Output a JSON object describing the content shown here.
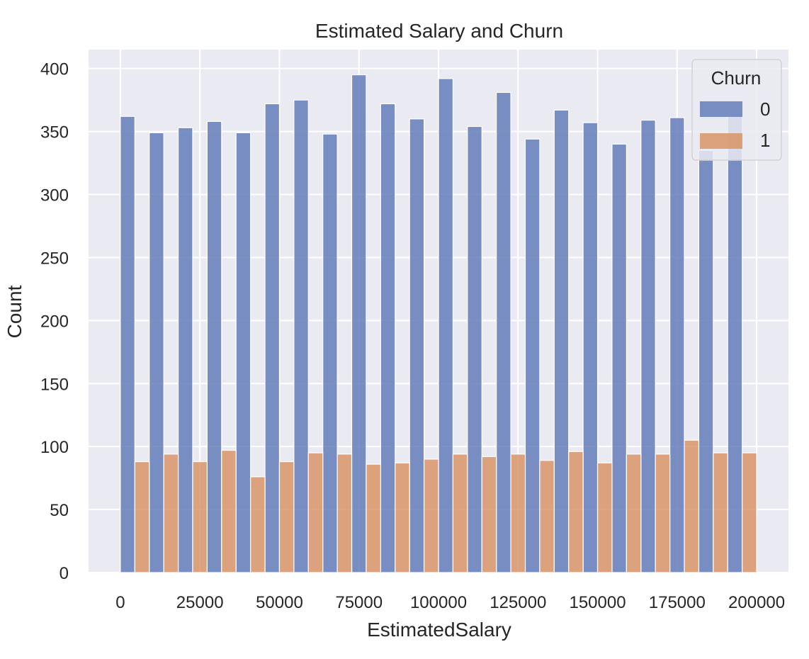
{
  "chart_data": {
    "type": "bar",
    "title": "Estimated Salary and Churn",
    "xlabel": "EstimatedSalary",
    "ylabel": "Count",
    "xlim": [
      -10000,
      210000
    ],
    "ylim": [
      0,
      415
    ],
    "x_ticks": [
      0,
      25000,
      50000,
      75000,
      100000,
      125000,
      150000,
      175000,
      200000
    ],
    "x_tick_labels": [
      "0",
      "25000",
      "50000",
      "75000",
      "100000",
      "125000",
      "150000",
      "175000",
      "200000"
    ],
    "y_ticks": [
      0,
      50,
      100,
      150,
      200,
      250,
      300,
      350,
      400
    ],
    "y_tick_labels": [
      "0",
      "50",
      "100",
      "150",
      "200",
      "250",
      "300",
      "350",
      "400"
    ],
    "bin_edges": [
      0,
      9090.9,
      18181.8,
      27272.7,
      36363.6,
      45454.5,
      54545.5,
      63636.4,
      72727.3,
      81818.2,
      90909.1,
      100000,
      109090.9,
      118181.8,
      127272.7,
      136363.6,
      145454.5,
      154545.5,
      163636.4,
      172727.3,
      181818.2,
      190909.1,
      200000
    ],
    "multiple": "dodge",
    "grid": true,
    "legend": {
      "title": "Churn",
      "position": "top-right"
    },
    "series": [
      {
        "name": "0",
        "color": "#5b76b4",
        "values": [
          362,
          349,
          353,
          358,
          349,
          372,
          375,
          348,
          395,
          372,
          360,
          392,
          354,
          381,
          344,
          367,
          357,
          340,
          359,
          361,
          335,
          362
        ]
      },
      {
        "name": "1",
        "color": "#d7905f",
        "values": [
          88,
          94,
          88,
          97,
          76,
          88,
          95,
          94,
          86,
          87,
          90,
          94,
          92,
          94,
          89,
          96,
          87,
          94,
          94,
          105,
          95,
          95
        ]
      }
    ]
  }
}
